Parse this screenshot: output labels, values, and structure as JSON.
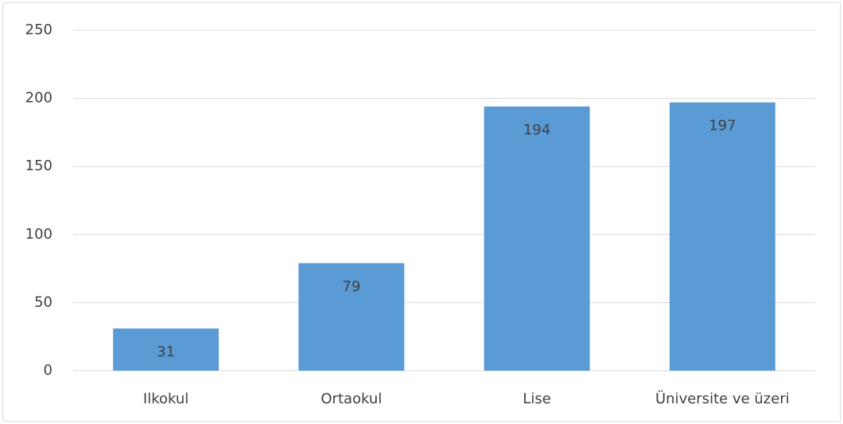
{
  "chart_data": {
    "type": "bar",
    "categories": [
      "Ilkokul",
      "Ortaokul",
      "Lise",
      "Üniversite ve üzeri"
    ],
    "values": [
      31,
      79,
      194,
      197
    ],
    "color": "#5b9bd5",
    "ylim": [
      0,
      250
    ],
    "yticks": [
      0,
      50,
      100,
      150,
      200,
      250
    ],
    "grid": true,
    "data_labels": true
  }
}
